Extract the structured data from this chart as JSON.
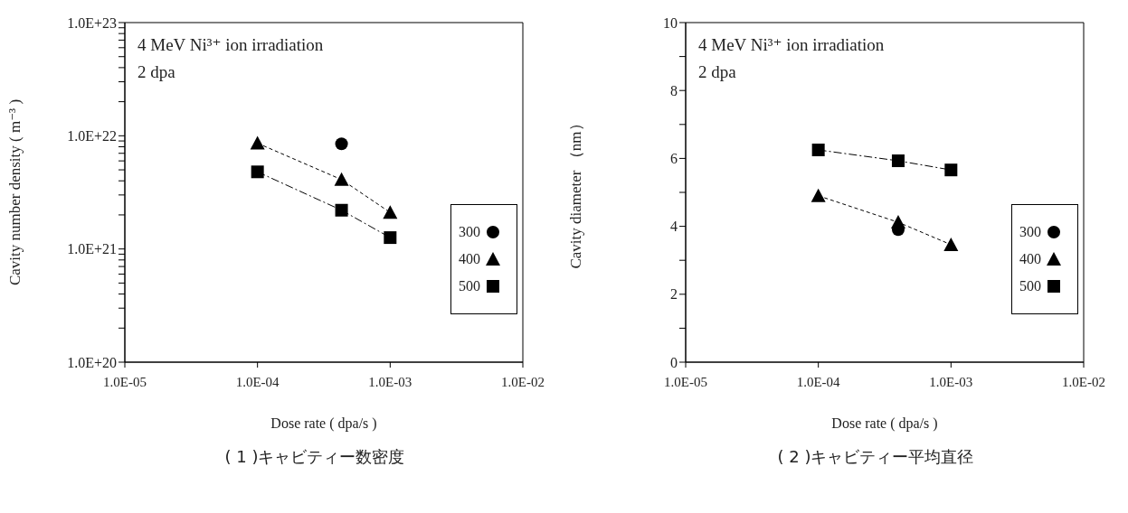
{
  "chart_data": [
    {
      "type": "scatter",
      "title": "( 1 )キャビティー数密度",
      "xlabel": "Dose rate ( dpa/s )",
      "ylabel": "Cavity number density ( m⁻³ )",
      "annotations": [
        "4 MeV Ni³⁺ ion irradiation",
        "2 dpa"
      ],
      "log": "xy",
      "xlim": [
        1e-05,
        0.01
      ],
      "xticks": [
        {
          "value": 1e-05,
          "label": "1.0E-05"
        },
        {
          "value": 0.0001,
          "label": "1.0E-04"
        },
        {
          "value": 0.001,
          "label": "1.0E-03"
        },
        {
          "value": 0.01,
          "label": "1.0E-02"
        }
      ],
      "ylim": [
        1e+20,
        1e+23
      ],
      "yticks": [
        {
          "value": 1e+20,
          "label": "1.0E+20"
        },
        {
          "value": 2e+20,
          "label": null
        },
        {
          "value": 3e+20,
          "label": null
        },
        {
          "value": 4e+20,
          "label": null
        },
        {
          "value": 5e+20,
          "label": null
        },
        {
          "value": 6e+20,
          "label": null
        },
        {
          "value": 7e+20,
          "label": null
        },
        {
          "value": 8e+20,
          "label": null
        },
        {
          "value": 9e+20,
          "label": null
        },
        {
          "value": 1e+21,
          "label": "1.0E+21"
        },
        {
          "value": 2e+21,
          "label": null
        },
        {
          "value": 3e+21,
          "label": null
        },
        {
          "value": 4e+21,
          "label": null
        },
        {
          "value": 5e+21,
          "label": null
        },
        {
          "value": 6e+21,
          "label": null
        },
        {
          "value": 7e+21,
          "label": null
        },
        {
          "value": 8e+21,
          "label": null
        },
        {
          "value": 9e+21,
          "label": null
        },
        {
          "value": 1e+22,
          "label": "1.0E+22"
        },
        {
          "value": 2e+22,
          "label": null
        },
        {
          "value": 3e+22,
          "label": null
        },
        {
          "value": 4e+22,
          "label": null
        },
        {
          "value": 5e+22,
          "label": null
        },
        {
          "value": 6e+22,
          "label": null
        },
        {
          "value": 7e+22,
          "label": null
        },
        {
          "value": 8e+22,
          "label": null
        },
        {
          "value": 9e+22,
          "label": null
        },
        {
          "value": 1e+23,
          "label": "1.0E+23"
        }
      ],
      "grid": false,
      "legend": "bottom right",
      "series": [
        {
          "name": "300",
          "color": "#000000",
          "marker": "circle",
          "line_style": "none",
          "x": [
            0.00043
          ],
          "values": [
            8.5e+21
          ]
        },
        {
          "name": "400",
          "type": "line",
          "color": "#000000",
          "marker": "triangle",
          "line_style": "dotted",
          "x": [
            0.0001,
            0.00043,
            0.001
          ],
          "values": [
            8.6e+21,
            4.1e+21,
            2.1e+21
          ]
        },
        {
          "name": "500",
          "type": "line",
          "color": "#000000",
          "marker": "square",
          "line_style": "dashed",
          "x": [
            0.0001,
            0.00043,
            0.001
          ],
          "values": [
            4.8e+21,
            2.2e+21,
            1.26e+21
          ]
        }
      ]
    },
    {
      "type": "scatter",
      "title": "( 2 )キャビティー平均直径",
      "xlabel": "Dose rate ( dpa/s )",
      "ylabel": "Cavity diameter （nm）",
      "annotations": [
        "4 MeV Ni³⁺ ion irradiation",
        "2 dpa"
      ],
      "log": "x",
      "xlim": [
        1e-05,
        0.01
      ],
      "xticks": [
        {
          "value": 1e-05,
          "label": "1.0E-05"
        },
        {
          "value": 0.0001,
          "label": "1.0E-04"
        },
        {
          "value": 0.001,
          "label": "1.0E-03"
        },
        {
          "value": 0.01,
          "label": "1.0E-02"
        }
      ],
      "ylim": [
        0,
        10
      ],
      "yticks": [
        0,
        {
          "value": 1,
          "label": null
        },
        2,
        {
          "value": 3,
          "label": null
        },
        4,
        {
          "value": 5,
          "label": null
        },
        6,
        {
          "value": 7,
          "label": null
        },
        8,
        {
          "value": 9,
          "label": null
        },
        10
      ],
      "grid": false,
      "legend": "bottom right",
      "series": [
        {
          "name": "300",
          "color": "#000000",
          "marker": "circle",
          "line_style": "none",
          "x": [
            0.0004
          ],
          "values": [
            3.9
          ]
        },
        {
          "name": "400",
          "type": "line",
          "color": "#000000",
          "marker": "triangle",
          "line_style": "dotted",
          "x": [
            0.0001,
            0.0004,
            0.001
          ],
          "values": [
            4.9,
            4.12,
            3.46
          ]
        },
        {
          "name": "500",
          "type": "line",
          "color": "#000000",
          "marker": "square",
          "line_style": "dashed",
          "x": [
            0.0001,
            0.0004,
            0.001
          ],
          "values": [
            6.25,
            5.93,
            5.66
          ]
        }
      ]
    }
  ]
}
